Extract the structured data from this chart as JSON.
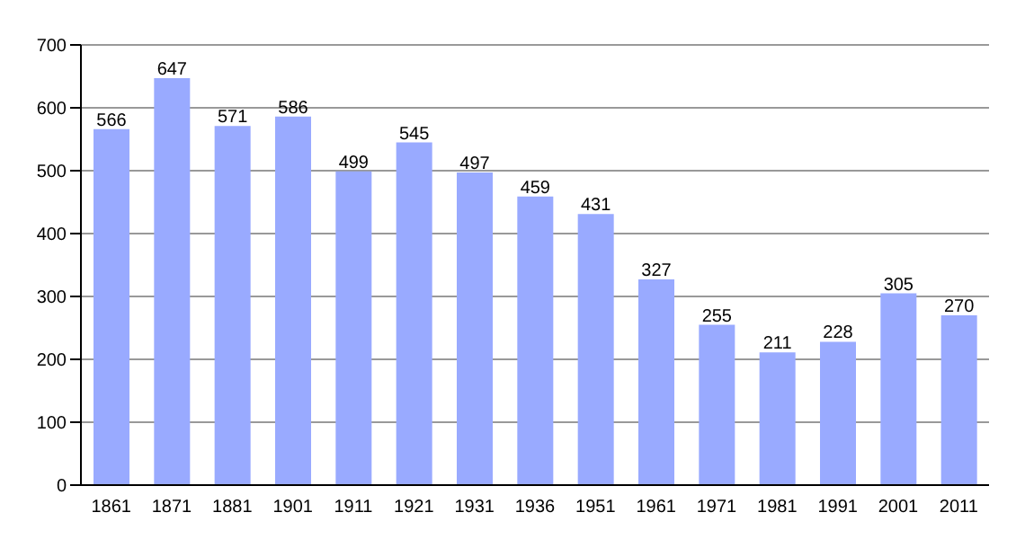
{
  "chart_data": {
    "type": "bar",
    "categories": [
      "1861",
      "1871",
      "1881",
      "1901",
      "1911",
      "1921",
      "1931",
      "1936",
      "1951",
      "1961",
      "1971",
      "1981",
      "1991",
      "2001",
      "2011"
    ],
    "values": [
      566,
      647,
      571,
      586,
      499,
      545,
      497,
      459,
      431,
      327,
      255,
      211,
      228,
      305,
      270
    ],
    "color": "#99aaff",
    "ylim": [
      0,
      700
    ],
    "yticks": [
      0,
      100,
      200,
      300,
      400,
      500,
      600,
      700
    ],
    "grid": "y",
    "data_labels": true
  }
}
